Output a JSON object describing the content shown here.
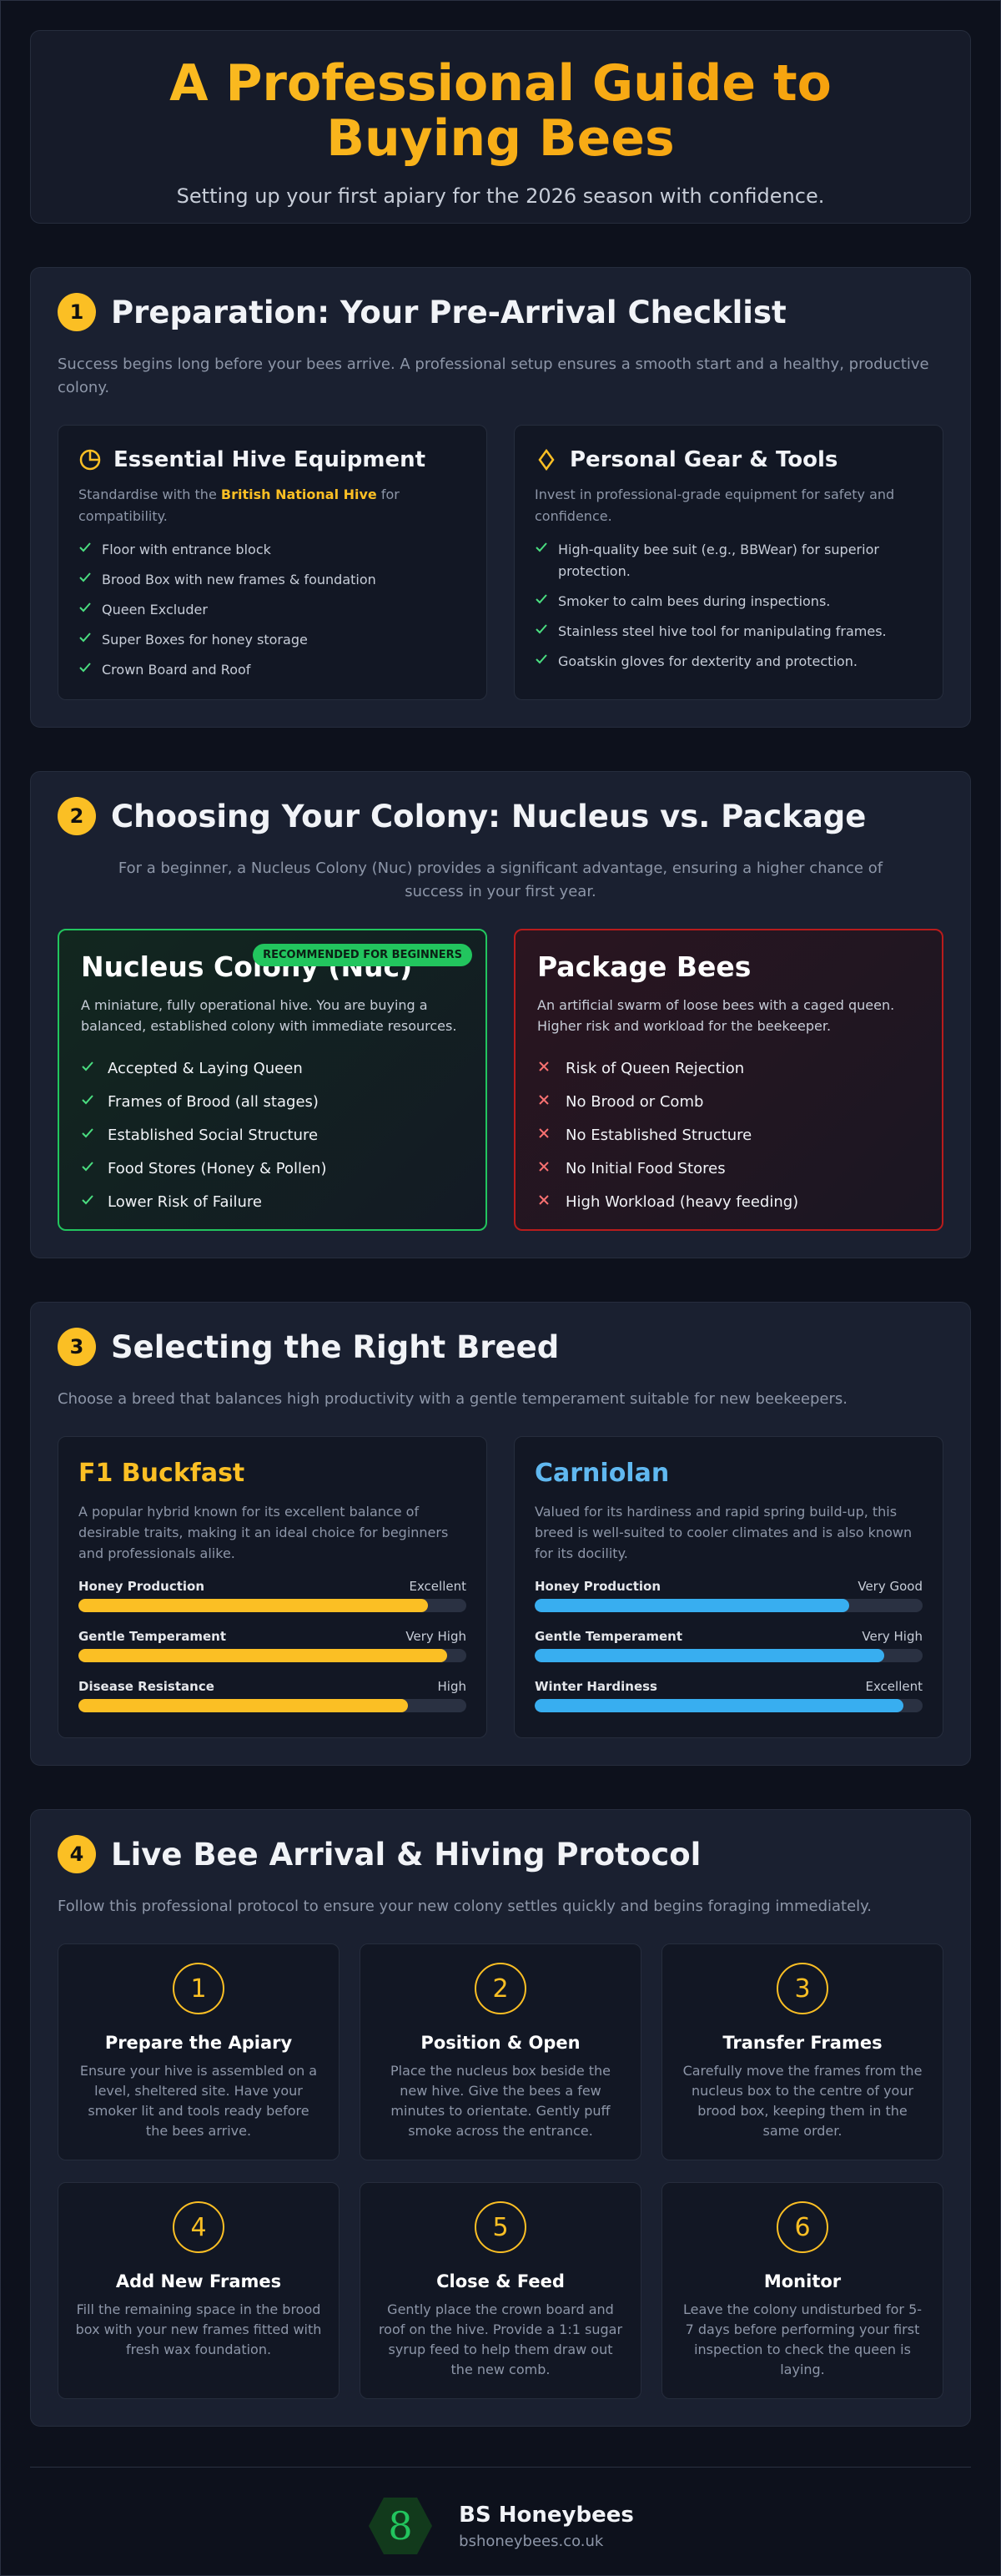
{
  "header": {
    "title": "A Professional Guide to Buying Bees",
    "subtitle": "Setting up your first apiary for the 2026 season with confidence."
  },
  "preparation": {
    "number": "1",
    "heading": "Preparation: Your Pre-Arrival Checklist",
    "intro": "Success begins long before your bees arrive. A professional setup ensures a smooth start and a healthy, productive colony.",
    "equipment": {
      "title": "Essential Hive Equipment",
      "desc_before": "Standardise with the ",
      "desc_highlight": "British National Hive",
      "desc_after": " for compatibility.",
      "items": [
        "Floor with entrance block",
        "Brood Box with new frames & foundation",
        "Queen Excluder",
        "Super Boxes for honey storage",
        "Crown Board and Roof"
      ]
    },
    "gear": {
      "title": "Personal Gear & Tools",
      "desc": "Invest in professional-grade equipment for safety and confidence.",
      "items": [
        "High-quality bee suit (e.g., BBWear) for superior protection.",
        "Smoker to calm bees during inspections.",
        "Stainless steel hive tool for manipulating frames.",
        "Goatskin gloves for dexterity and protection."
      ]
    }
  },
  "colony": {
    "number": "2",
    "heading": "Choosing Your Colony: Nucleus vs. Package",
    "intro": "For a beginner, a Nucleus Colony (Nuc) provides a significant advantage, ensuring a higher chance of success in your first year.",
    "nucleus": {
      "badge": "RECOMMENDED FOR BEGINNERS",
      "title": "Nucleus Colony (Nuc)",
      "desc": "A miniature, fully operational hive. You are buying a balanced, established colony with immediate resources.",
      "items": [
        "Accepted & Laying Queen",
        "Frames of Brood (all stages)",
        "Established Social Structure",
        "Food Stores (Honey & Pollen)",
        "Lower Risk of Failure"
      ]
    },
    "package": {
      "title": "Package Bees",
      "desc": "An artificial swarm of loose bees with a caged queen. Higher risk and workload for the beekeeper.",
      "items": [
        "Risk of Queen Rejection",
        "No Brood or Comb",
        "No Established Structure",
        "No Initial Food Stores",
        "High Workload (heavy feeding)"
      ]
    }
  },
  "breeds": {
    "number": "3",
    "heading": "Selecting the Right Breed",
    "intro": "Choose a breed that balances high productivity with a gentle temperament suitable for new beekeepers.",
    "cards": [
      {
        "title": "F1 Buckfast",
        "desc": "A popular hybrid known for its excellent balance of desirable traits, making it an ideal choice for beginners and professionals alike.",
        "traits": [
          {
            "name": "Honey Production",
            "rating": "Excellent"
          },
          {
            "name": "Gentle Temperament",
            "rating": "Very High"
          },
          {
            "name": "Disease Resistance",
            "rating": "High"
          }
        ]
      },
      {
        "title": "Carniolan",
        "desc": "Valued for its hardiness and rapid spring build-up, this breed is well-suited to cooler climates and is also known for its docility.",
        "traits": [
          {
            "name": "Honey Production",
            "rating": "Very Good"
          },
          {
            "name": "Gentle Temperament",
            "rating": "Very High"
          },
          {
            "name": "Winter Hardiness",
            "rating": "Excellent"
          }
        ]
      }
    ]
  },
  "protocol": {
    "number": "4",
    "heading": "Live Bee Arrival & Hiving Protocol",
    "intro": "Follow this professional protocol to ensure your new colony settles quickly and begins foraging immediately.",
    "steps": [
      {
        "number": "1",
        "title": "Prepare the Apiary",
        "text": "Ensure your hive is assembled on a level, sheltered site. Have your smoker lit and tools ready before the bees arrive."
      },
      {
        "number": "2",
        "title": "Position & Open",
        "text": "Place the nucleus box beside the new hive. Give the bees a few minutes to orientate. Gently puff smoke across the entrance."
      },
      {
        "number": "3",
        "title": "Transfer Frames",
        "text": "Carefully move the frames from the nucleus box to the centre of your brood box, keeping them in the same order."
      },
      {
        "number": "4",
        "title": "Add New Frames",
        "text": "Fill the remaining space in the brood box with your new frames fitted with fresh wax foundation."
      },
      {
        "number": "5",
        "title": "Close & Feed",
        "text": "Gently place the crown board and roof on the hive. Provide a 1:1 sugar syrup feed to help them draw out the new comb."
      },
      {
        "number": "6",
        "title": "Monitor",
        "text": "Leave the colony undisturbed for 5-7 days before performing your first inspection to check the queen is laying."
      }
    ]
  },
  "footer": {
    "name": "BS Honeybees",
    "url": "bshoneybees.co.uk"
  }
}
